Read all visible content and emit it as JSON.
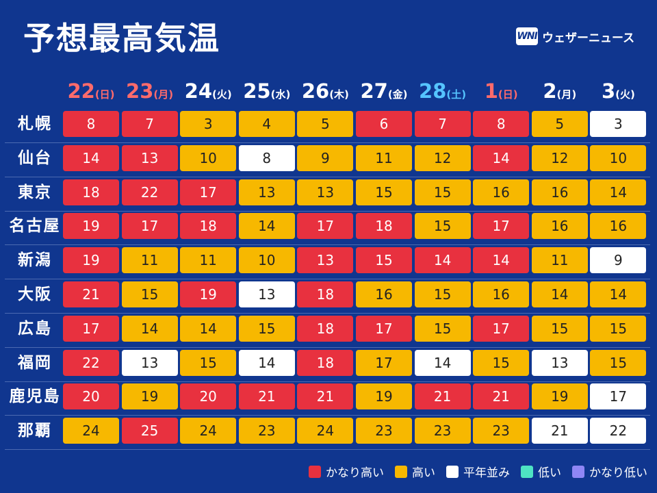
{
  "title": "予想最高気温",
  "brand": {
    "mark": "WNI",
    "name": "ウェザーニュース"
  },
  "colors": {
    "very_high": "#e8313f",
    "high": "#f7b800",
    "normal": "#ffffff",
    "low": "#4ee3c3",
    "very_low": "#8f86f5",
    "background": "#10368f"
  },
  "days": [
    {
      "day": "22",
      "weekday": "(日)",
      "kind": "sun"
    },
    {
      "day": "23",
      "weekday": "(月)",
      "kind": "sun"
    },
    {
      "day": "24",
      "weekday": "(火)",
      "kind": "wk"
    },
    {
      "day": "25",
      "weekday": "(水)",
      "kind": "wk"
    },
    {
      "day": "26",
      "weekday": "(木)",
      "kind": "wk"
    },
    {
      "day": "27",
      "weekday": "(金)",
      "kind": "wk"
    },
    {
      "day": "28",
      "weekday": "(土)",
      "kind": "sat"
    },
    {
      "day": "1",
      "weekday": "(日)",
      "kind": "sun"
    },
    {
      "day": "2",
      "weekday": "(月)",
      "kind": "wk"
    },
    {
      "day": "3",
      "weekday": "(火)",
      "kind": "wk"
    }
  ],
  "rows": [
    {
      "city": "札幌",
      "temps": [
        "8",
        "7",
        "3",
        "4",
        "5",
        "6",
        "7",
        "8",
        "5",
        "3"
      ],
      "levels": [
        "vh",
        "vh",
        "hi",
        "hi",
        "hi",
        "vh",
        "vh",
        "vh",
        "hi",
        "nm"
      ]
    },
    {
      "city": "仙台",
      "temps": [
        "14",
        "13",
        "10",
        "8",
        "9",
        "11",
        "12",
        "14",
        "12",
        "10"
      ],
      "levels": [
        "vh",
        "vh",
        "hi",
        "nm",
        "hi",
        "hi",
        "hi",
        "vh",
        "hi",
        "hi"
      ]
    },
    {
      "city": "東京",
      "temps": [
        "18",
        "22",
        "17",
        "13",
        "13",
        "15",
        "15",
        "16",
        "16",
        "14"
      ],
      "levels": [
        "vh",
        "vh",
        "vh",
        "hi",
        "hi",
        "hi",
        "hi",
        "hi",
        "hi",
        "hi"
      ]
    },
    {
      "city": "名古屋",
      "temps": [
        "19",
        "17",
        "18",
        "14",
        "17",
        "18",
        "15",
        "17",
        "16",
        "16"
      ],
      "levels": [
        "vh",
        "vh",
        "vh",
        "hi",
        "vh",
        "vh",
        "hi",
        "vh",
        "hi",
        "hi"
      ]
    },
    {
      "city": "新潟",
      "temps": [
        "19",
        "11",
        "11",
        "10",
        "13",
        "15",
        "14",
        "14",
        "11",
        "9"
      ],
      "levels": [
        "vh",
        "hi",
        "hi",
        "hi",
        "vh",
        "vh",
        "vh",
        "vh",
        "hi",
        "nm"
      ]
    },
    {
      "city": "大阪",
      "temps": [
        "21",
        "15",
        "19",
        "13",
        "18",
        "16",
        "15",
        "16",
        "14",
        "14"
      ],
      "levels": [
        "vh",
        "hi",
        "vh",
        "nm",
        "vh",
        "hi",
        "hi",
        "hi",
        "hi",
        "hi"
      ]
    },
    {
      "city": "広島",
      "temps": [
        "17",
        "14",
        "14",
        "15",
        "18",
        "17",
        "15",
        "17",
        "15",
        "15"
      ],
      "levels": [
        "vh",
        "hi",
        "hi",
        "hi",
        "vh",
        "vh",
        "hi",
        "vh",
        "hi",
        "hi"
      ]
    },
    {
      "city": "福岡",
      "temps": [
        "22",
        "13",
        "15",
        "14",
        "18",
        "17",
        "14",
        "15",
        "13",
        "15"
      ],
      "levels": [
        "vh",
        "nm",
        "hi",
        "nm",
        "vh",
        "hi",
        "nm",
        "hi",
        "nm",
        "hi"
      ]
    },
    {
      "city": "鹿児島",
      "temps": [
        "20",
        "19",
        "20",
        "21",
        "21",
        "19",
        "21",
        "21",
        "19",
        "17"
      ],
      "levels": [
        "vh",
        "hi",
        "vh",
        "vh",
        "vh",
        "hi",
        "vh",
        "vh",
        "hi",
        "nm"
      ]
    },
    {
      "city": "那覇",
      "temps": [
        "24",
        "25",
        "24",
        "23",
        "24",
        "23",
        "23",
        "23",
        "21",
        "22"
      ],
      "levels": [
        "hi",
        "vh",
        "hi",
        "hi",
        "hi",
        "hi",
        "hi",
        "hi",
        "nm",
        "nm"
      ]
    }
  ],
  "legend": [
    {
      "label": "かなり高い",
      "color": "#e8313f"
    },
    {
      "label": "高い",
      "color": "#f7b800"
    },
    {
      "label": "平年並み",
      "color": "#ffffff"
    },
    {
      "label": "低い",
      "color": "#4ee3c3"
    },
    {
      "label": "かなり低い",
      "color": "#8f86f5"
    }
  ]
}
